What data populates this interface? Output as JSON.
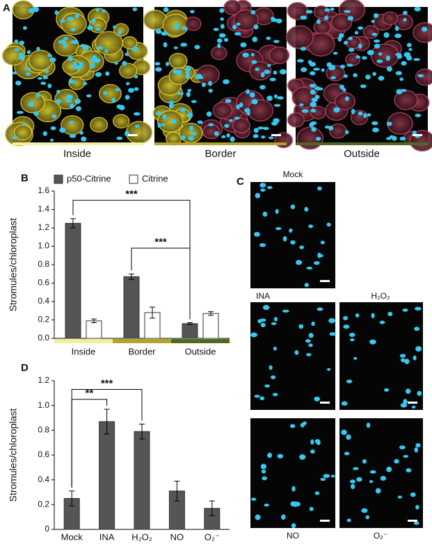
{
  "panels": {
    "a": {
      "letter": "A",
      "labels": [
        "Inside",
        "Border",
        "Outside"
      ]
    },
    "c": {
      "letter": "C",
      "labels": [
        "Mock",
        "INA",
        "H₂O₂",
        "NO",
        "O₂⁻"
      ]
    }
  },
  "chart_data": [
    {
      "type": "bar",
      "panel_letter": "B",
      "ylabel": "Stromules/chloroplast",
      "categories": [
        "Inside",
        "Border",
        "Outside"
      ],
      "category_colors": [
        "#f3ee9a",
        "#b3a52a",
        "#4d6b1e"
      ],
      "series": [
        {
          "name": "p50-Citrine",
          "color": "#555555",
          "values": [
            1.25,
            0.67,
            0.16
          ],
          "errors": [
            0.05,
            0.03,
            0.01
          ]
        },
        {
          "name": "Citrine",
          "color": "#ffffff",
          "values": [
            0.19,
            0.28,
            0.27
          ],
          "errors": [
            0.02,
            0.06,
            0.02
          ]
        }
      ],
      "annotations": [
        "***",
        "***"
      ],
      "ylim": [
        0,
        1.6
      ],
      "yticks": [
        {
          "value": 0,
          "label": "0.0"
        },
        0.2,
        0.4,
        0.6,
        0.8,
        {
          "value": 1,
          "label": "1.0"
        },
        1.2,
        1.4,
        1.6
      ]
    },
    {
      "type": "bar",
      "panel_letter": "D",
      "ylabel": "Stromules/chloroplast",
      "categories": [
        "Mock",
        "INA",
        "H₂O₂",
        "NO",
        "O₂⁻"
      ],
      "series": [
        {
          "name": "p50-Citrine",
          "color": "#555555",
          "values": [
            0.25,
            0.87,
            0.79,
            0.31,
            0.17
          ],
          "errors": [
            0.06,
            0.1,
            0.06,
            0.08,
            0.06
          ]
        }
      ],
      "annotations": [
        "**",
        "***"
      ],
      "ylim": [
        0,
        1.2
      ],
      "yticks": [
        0,
        0.2,
        0.4,
        0.6,
        0.8,
        {
          "value": 1,
          "label": "1.0"
        },
        1.2
      ]
    }
  ]
}
